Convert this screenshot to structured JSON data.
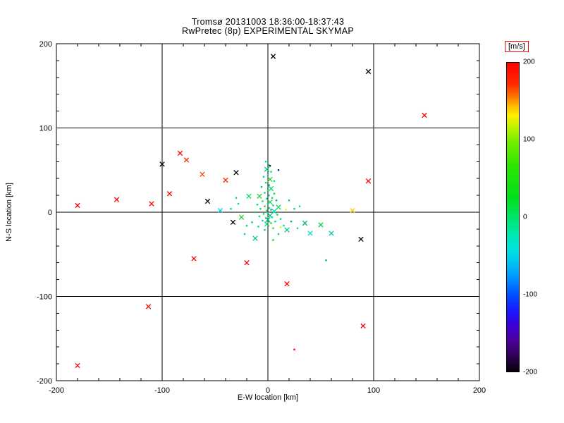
{
  "title": {
    "line1": "Tromsø 20131003 18:36:00-18:37:43",
    "line2": "RwPretec (8p) EXPERIMENTAL SKYMAP"
  },
  "chart_data": {
    "type": "scatter",
    "xlabel": "E-W location [km]",
    "ylabel": "N-S location [km]",
    "xlim": [
      -200,
      200
    ],
    "ylim": [
      -200,
      200
    ],
    "xticks": [
      -200,
      -100,
      0,
      100,
      200
    ],
    "yticks": [
      -200,
      -100,
      0,
      100,
      200
    ],
    "grid": true,
    "gridlines": [
      -100,
      0,
      100
    ],
    "legend_position": "right-colorbar",
    "colorbar": {
      "label": "[m/s]",
      "min": -200,
      "max": 200,
      "ticks": [
        200,
        100,
        0,
        -100,
        -200
      ],
      "stops": [
        {
          "color": "#ff0000",
          "pos": 0
        },
        {
          "color": "#ff2a00",
          "pos": 7
        },
        {
          "color": "#ff7700",
          "pos": 11
        },
        {
          "color": "#ffbb00",
          "pos": 14
        },
        {
          "color": "#ffee00",
          "pos": 17
        },
        {
          "color": "#cdf400",
          "pos": 20
        },
        {
          "color": "#7ded00",
          "pos": 25
        },
        {
          "color": "#2ee600",
          "pos": 33
        },
        {
          "color": "#00e01c",
          "pos": 44
        },
        {
          "color": "#00e46a",
          "pos": 50
        },
        {
          "color": "#00e7a8",
          "pos": 55
        },
        {
          "color": "#00e5dc",
          "pos": 60
        },
        {
          "color": "#00c2f2",
          "pos": 65
        },
        {
          "color": "#0090ff",
          "pos": 70
        },
        {
          "color": "#0051ff",
          "pos": 75
        },
        {
          "color": "#1a1aff",
          "pos": 80
        },
        {
          "color": "#3a00d9",
          "pos": 85
        },
        {
          "color": "#4b0099",
          "pos": 90
        },
        {
          "color": "#2e0055",
          "pos": 95
        },
        {
          "color": "#070008",
          "pos": 100
        }
      ]
    },
    "points": [
      {
        "x": -2,
        "y": 60,
        "c": "#00d9a8",
        "m": "d"
      },
      {
        "x": 1,
        "y": 56,
        "c": "#00e060",
        "m": "d"
      },
      {
        "x": -1,
        "y": 51,
        "c": "#00cc79",
        "m": "x"
      },
      {
        "x": 3,
        "y": 48,
        "c": "#1ddb4f",
        "m": "d"
      },
      {
        "x": 0,
        "y": 45,
        "c": "#00c9c9",
        "m": "d"
      },
      {
        "x": -4,
        "y": 42,
        "c": "#00e060",
        "m": "d"
      },
      {
        "x": 2,
        "y": 39,
        "c": "#30cc30",
        "m": "x"
      },
      {
        "x": 6,
        "y": 37,
        "c": "#00d9a8",
        "m": "d"
      },
      {
        "x": -2,
        "y": 35,
        "c": "#00e060",
        "m": "d"
      },
      {
        "x": 1,
        "y": 32,
        "c": "#00b386",
        "m": "d"
      },
      {
        "x": -6,
        "y": 30,
        "c": "#00cc79",
        "m": "d"
      },
      {
        "x": 3,
        "y": 28,
        "c": "#00e060",
        "m": "x"
      },
      {
        "x": 0,
        "y": 26,
        "c": "#1ddb4f",
        "m": "d"
      },
      {
        "x": -3,
        "y": 23,
        "c": "#00c9c9",
        "m": "d"
      },
      {
        "x": 6,
        "y": 22,
        "c": "#00e060",
        "m": "d"
      },
      {
        "x": 1,
        "y": 20,
        "c": "#00d9a8",
        "m": "d"
      },
      {
        "x": -8,
        "y": 19,
        "c": "#30cc30",
        "m": "x"
      },
      {
        "x": 4,
        "y": 17,
        "c": "#00e060",
        "m": "d"
      },
      {
        "x": -1,
        "y": 16,
        "c": "#00cc79",
        "m": "d"
      },
      {
        "x": 8,
        "y": 14,
        "c": "#00b386",
        "m": "d"
      },
      {
        "x": -5,
        "y": 13,
        "c": "#00e060",
        "m": "d"
      },
      {
        "x": 2,
        "y": 12,
        "c": "#1ddb4f",
        "m": "x"
      },
      {
        "x": 0,
        "y": 10,
        "c": "#00d9a8",
        "m": "d"
      },
      {
        "x": -10,
        "y": 9,
        "c": "#00e060",
        "m": "d"
      },
      {
        "x": 5,
        "y": 8,
        "c": "#00c9c9",
        "m": "d"
      },
      {
        "x": -3,
        "y": 7,
        "c": "#30cc30",
        "m": "d"
      },
      {
        "x": 10,
        "y": 6,
        "c": "#00e060",
        "m": "x"
      },
      {
        "x": 1,
        "y": 5,
        "c": "#00cc79",
        "m": "d"
      },
      {
        "x": -7,
        "y": 4,
        "c": "#00e060",
        "m": "d"
      },
      {
        "x": 3,
        "y": 3,
        "c": "#00b386",
        "m": "d"
      },
      {
        "x": -1,
        "y": 2,
        "c": "#1ddb4f",
        "m": "d"
      },
      {
        "x": 6,
        "y": 1,
        "c": "#00d9a8",
        "m": "x"
      },
      {
        "x": -12,
        "y": 0,
        "c": "#00e060",
        "m": "d"
      },
      {
        "x": 0,
        "y": -1,
        "c": "#00c9c9",
        "m": "d"
      },
      {
        "x": -4,
        "y": -2,
        "c": "#00e060",
        "m": "d"
      },
      {
        "x": 9,
        "y": -3,
        "c": "#30cc30",
        "m": "d"
      },
      {
        "x": 2,
        "y": -4,
        "c": "#00cc79",
        "m": "x"
      },
      {
        "x": -8,
        "y": -5,
        "c": "#00e060",
        "m": "d"
      },
      {
        "x": 4,
        "y": -6,
        "c": "#00d9a8",
        "m": "d"
      },
      {
        "x": -2,
        "y": -7,
        "c": "#1ddb4f",
        "m": "d"
      },
      {
        "x": 12,
        "y": -8,
        "c": "#00e060",
        "m": "d"
      },
      {
        "x": 0,
        "y": -9,
        "c": "#00b386",
        "m": "x"
      },
      {
        "x": -5,
        "y": -10,
        "c": "#00c9c9",
        "m": "d"
      },
      {
        "x": 7,
        "y": -11,
        "c": "#00e060",
        "m": "d"
      },
      {
        "x": -15,
        "y": -12,
        "c": "#00cc79",
        "m": "d"
      },
      {
        "x": 3,
        "y": -13,
        "c": "#30cc30",
        "m": "d"
      },
      {
        "x": -1,
        "y": -14,
        "c": "#00e060",
        "m": "x"
      },
      {
        "x": 15,
        "y": -16,
        "c": "#00d9a8",
        "m": "d"
      },
      {
        "x": -9,
        "y": -17,
        "c": "#00e060",
        "m": "d"
      },
      {
        "x": 5,
        "y": -19,
        "c": "#1ddb4f",
        "m": "d"
      },
      {
        "x": -3,
        "y": -21,
        "c": "#00c9c9",
        "m": "d"
      },
      {
        "x": 18,
        "y": -21,
        "c": "#00cc79",
        "m": "x"
      },
      {
        "x": -20,
        "y": -16,
        "c": "#00e060",
        "m": "d"
      },
      {
        "x": 22,
        "y": -11,
        "c": "#00b386",
        "m": "d"
      },
      {
        "x": -25,
        "y": -6,
        "c": "#30cc30",
        "m": "x"
      },
      {
        "x": 25,
        "y": 4,
        "c": "#00e060",
        "m": "d"
      },
      {
        "x": -28,
        "y": 10,
        "c": "#00d9a8",
        "m": "d"
      },
      {
        "x": 20,
        "y": 14,
        "c": "#00cc79",
        "m": "d"
      },
      {
        "x": -18,
        "y": 19,
        "c": "#00e060",
        "m": "x"
      },
      {
        "x": 28,
        "y": -19,
        "c": "#1ddb4f",
        "m": "d"
      },
      {
        "x": -22,
        "y": -26,
        "c": "#00c9c9",
        "m": "d"
      },
      {
        "x": 10,
        "y": -26,
        "c": "#00e060",
        "m": "d"
      },
      {
        "x": -12,
        "y": -31,
        "c": "#00cc79",
        "m": "x"
      },
      {
        "x": 5,
        "y": -33,
        "c": "#30cc30",
        "m": "d"
      },
      {
        "x": -30,
        "y": 17,
        "c": "#00e060",
        "m": "d"
      },
      {
        "x": 30,
        "y": 7,
        "c": "#00d9a8",
        "m": "d"
      },
      {
        "x": 35,
        "y": -13,
        "c": "#00b386",
        "m": "x"
      },
      {
        "x": -35,
        "y": 4,
        "c": "#00c9c9",
        "m": "d"
      },
      {
        "x": -45,
        "y": 2,
        "c": "#00ccee",
        "m": "x"
      },
      {
        "x": 40,
        "y": -25,
        "c": "#00debe",
        "m": "x"
      },
      {
        "x": 60,
        "y": -25,
        "c": "#00c9ae",
        "m": "x"
      },
      {
        "x": 50,
        "y": -15,
        "c": "#00cc44",
        "m": "x"
      },
      {
        "x": 55,
        "y": -57,
        "c": "#00bb55",
        "m": "d"
      },
      {
        "x": 80,
        "y": 2,
        "c": "#ffcc00",
        "m": "x"
      },
      {
        "x": 17,
        "y": 3,
        "c": "#ffee00",
        "m": "d"
      },
      {
        "x": 12,
        "y": -18,
        "c": "#ccff00",
        "m": "d"
      },
      {
        "x": 2,
        "y": 55,
        "c": "#001a66",
        "m": "d"
      },
      {
        "x": 10,
        "y": 50,
        "c": "#003377",
        "m": "d"
      },
      {
        "x": -100,
        "y": 57,
        "c": "#000000",
        "m": "x"
      },
      {
        "x": -57,
        "y": 13,
        "c": "#000000",
        "m": "x"
      },
      {
        "x": -30,
        "y": 47,
        "c": "#000000",
        "m": "x"
      },
      {
        "x": 5,
        "y": 185,
        "c": "#000000",
        "m": "x"
      },
      {
        "x": 95,
        "y": 167,
        "c": "#000000",
        "m": "x"
      },
      {
        "x": -33,
        "y": -12,
        "c": "#000000",
        "m": "x"
      },
      {
        "x": 88,
        "y": -32,
        "c": "#000000",
        "m": "x"
      },
      {
        "x": -180,
        "y": 8,
        "c": "#ff0000",
        "m": "x"
      },
      {
        "x": -143,
        "y": 15,
        "c": "#ff0000",
        "m": "x"
      },
      {
        "x": -110,
        "y": 10,
        "c": "#ff0000",
        "m": "x"
      },
      {
        "x": -93,
        "y": 22,
        "c": "#ff0000",
        "m": "x"
      },
      {
        "x": -83,
        "y": 70,
        "c": "#ff0000",
        "m": "x"
      },
      {
        "x": -77,
        "y": 62,
        "c": "#ff2200",
        "m": "x"
      },
      {
        "x": -70,
        "y": -55,
        "c": "#ff0000",
        "m": "x"
      },
      {
        "x": -62,
        "y": 45,
        "c": "#ff4400",
        "m": "x"
      },
      {
        "x": -40,
        "y": 38,
        "c": "#ff2200",
        "m": "x"
      },
      {
        "x": -20,
        "y": -60,
        "c": "#ff0000",
        "m": "x"
      },
      {
        "x": 18,
        "y": -85,
        "c": "#ff0000",
        "m": "x"
      },
      {
        "x": 95,
        "y": 37,
        "c": "#ff0000",
        "m": "x"
      },
      {
        "x": 90,
        "y": -135,
        "c": "#ff0000",
        "m": "x"
      },
      {
        "x": 148,
        "y": 115,
        "c": "#ff0000",
        "m": "x"
      },
      {
        "x": -113,
        "y": -112,
        "c": "#ff0000",
        "m": "x"
      },
      {
        "x": -180,
        "y": -182,
        "c": "#ff0000",
        "m": "x"
      },
      {
        "x": 25,
        "y": -163,
        "c": "#ff0000",
        "m": "d"
      }
    ]
  }
}
